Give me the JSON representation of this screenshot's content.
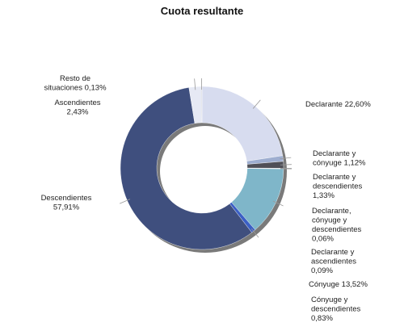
{
  "chart_data": {
    "type": "pie",
    "title": "Cuota resultante",
    "slices": [
      {
        "label_lines": [
          "Declarante 22,60%"
        ],
        "value": 22.6,
        "color": "#d7dcef"
      },
      {
        "label_lines": [
          "Declarante y",
          "cónyuge 1,12%"
        ],
        "value": 1.12,
        "color": "#9eaed0"
      },
      {
        "label_lines": [
          "Declarante y",
          "descendientes",
          "1,33%"
        ],
        "value": 1.33,
        "color": "#4f4f57"
      },
      {
        "label_lines": [
          "Declarante,",
          "cónyuge y",
          "descendientes",
          "0,06%"
        ],
        "value": 0.06,
        "color": "#7b7f8a"
      },
      {
        "label_lines": [
          "Declarante y",
          "ascendientes",
          "0,09%"
        ],
        "value": 0.09,
        "color": "#8a8f99"
      },
      {
        "label_lines": [
          "Cónyuge 13,52%"
        ],
        "value": 13.52,
        "color": "#7fb6c9"
      },
      {
        "label_lines": [
          "Cónyuge y",
          "descendientes",
          "0,83%"
        ],
        "value": 0.83,
        "color": "#3b5fc4"
      },
      {
        "label_lines": [
          "Descendientes",
          "57,91%"
        ],
        "value": 57.91,
        "color": "#3f4f7e"
      },
      {
        "label_lines": [
          "Ascendientes",
          "2,43%"
        ],
        "value": 2.43,
        "color": "#e6e9f4"
      },
      {
        "label_lines": [
          "Resto de",
          "situaciones 0,13%"
        ],
        "value": 0.13,
        "color": "#b8bcc8"
      }
    ],
    "legend": "none"
  }
}
